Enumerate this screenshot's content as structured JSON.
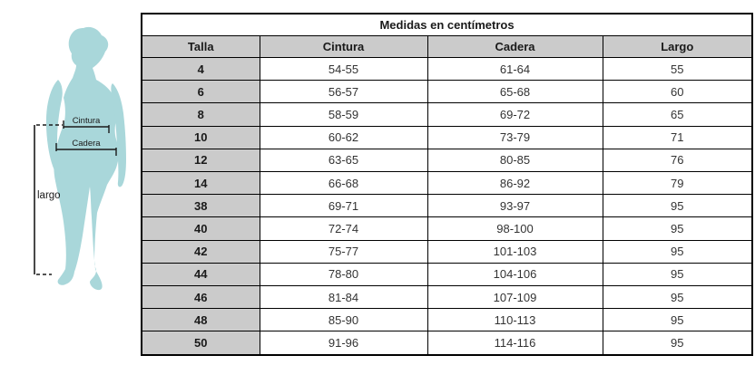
{
  "figure": {
    "waist_label": "Cintura",
    "hip_label": "Cadera",
    "length_label": "largo",
    "silhouette_color": "#a9d7da",
    "annotation_color": "#1a1a1a"
  },
  "table": {
    "title": "Medidas en centímetros",
    "columns": [
      "Talla",
      "Cintura",
      "Cadera",
      "Largo"
    ],
    "rows": [
      {
        "talla": "4",
        "cintura": "54-55",
        "cadera": "61-64",
        "largo": "55"
      },
      {
        "talla": "6",
        "cintura": "56-57",
        "cadera": "65-68",
        "largo": "60"
      },
      {
        "talla": "8",
        "cintura": "58-59",
        "cadera": "69-72",
        "largo": "65"
      },
      {
        "talla": "10",
        "cintura": "60-62",
        "cadera": "73-79",
        "largo": "71"
      },
      {
        "talla": "12",
        "cintura": "63-65",
        "cadera": "80-85",
        "largo": "76"
      },
      {
        "talla": "14",
        "cintura": "66-68",
        "cadera": "86-92",
        "largo": "79"
      },
      {
        "talla": "38",
        "cintura": "69-71",
        "cadera": "93-97",
        "largo": "95"
      },
      {
        "talla": "40",
        "cintura": "72-74",
        "cadera": "98-100",
        "largo": "95"
      },
      {
        "talla": "42",
        "cintura": "75-77",
        "cadera": "101-103",
        "largo": "95"
      },
      {
        "talla": "44",
        "cintura": "78-80",
        "cadera": "104-106",
        "largo": "95"
      },
      {
        "talla": "46",
        "cintura": "81-84",
        "cadera": "107-109",
        "largo": "95"
      },
      {
        "talla": "48",
        "cintura": "85-90",
        "cadera": "110-113",
        "largo": "95"
      },
      {
        "talla": "50",
        "cintura": "91-96",
        "cadera": "114-116",
        "largo": "95"
      }
    ]
  },
  "colors": {
    "header_bg": "#cbcbcb",
    "border": "#000000",
    "title_text": "#1a1a1a",
    "cell_text": "#333333"
  }
}
